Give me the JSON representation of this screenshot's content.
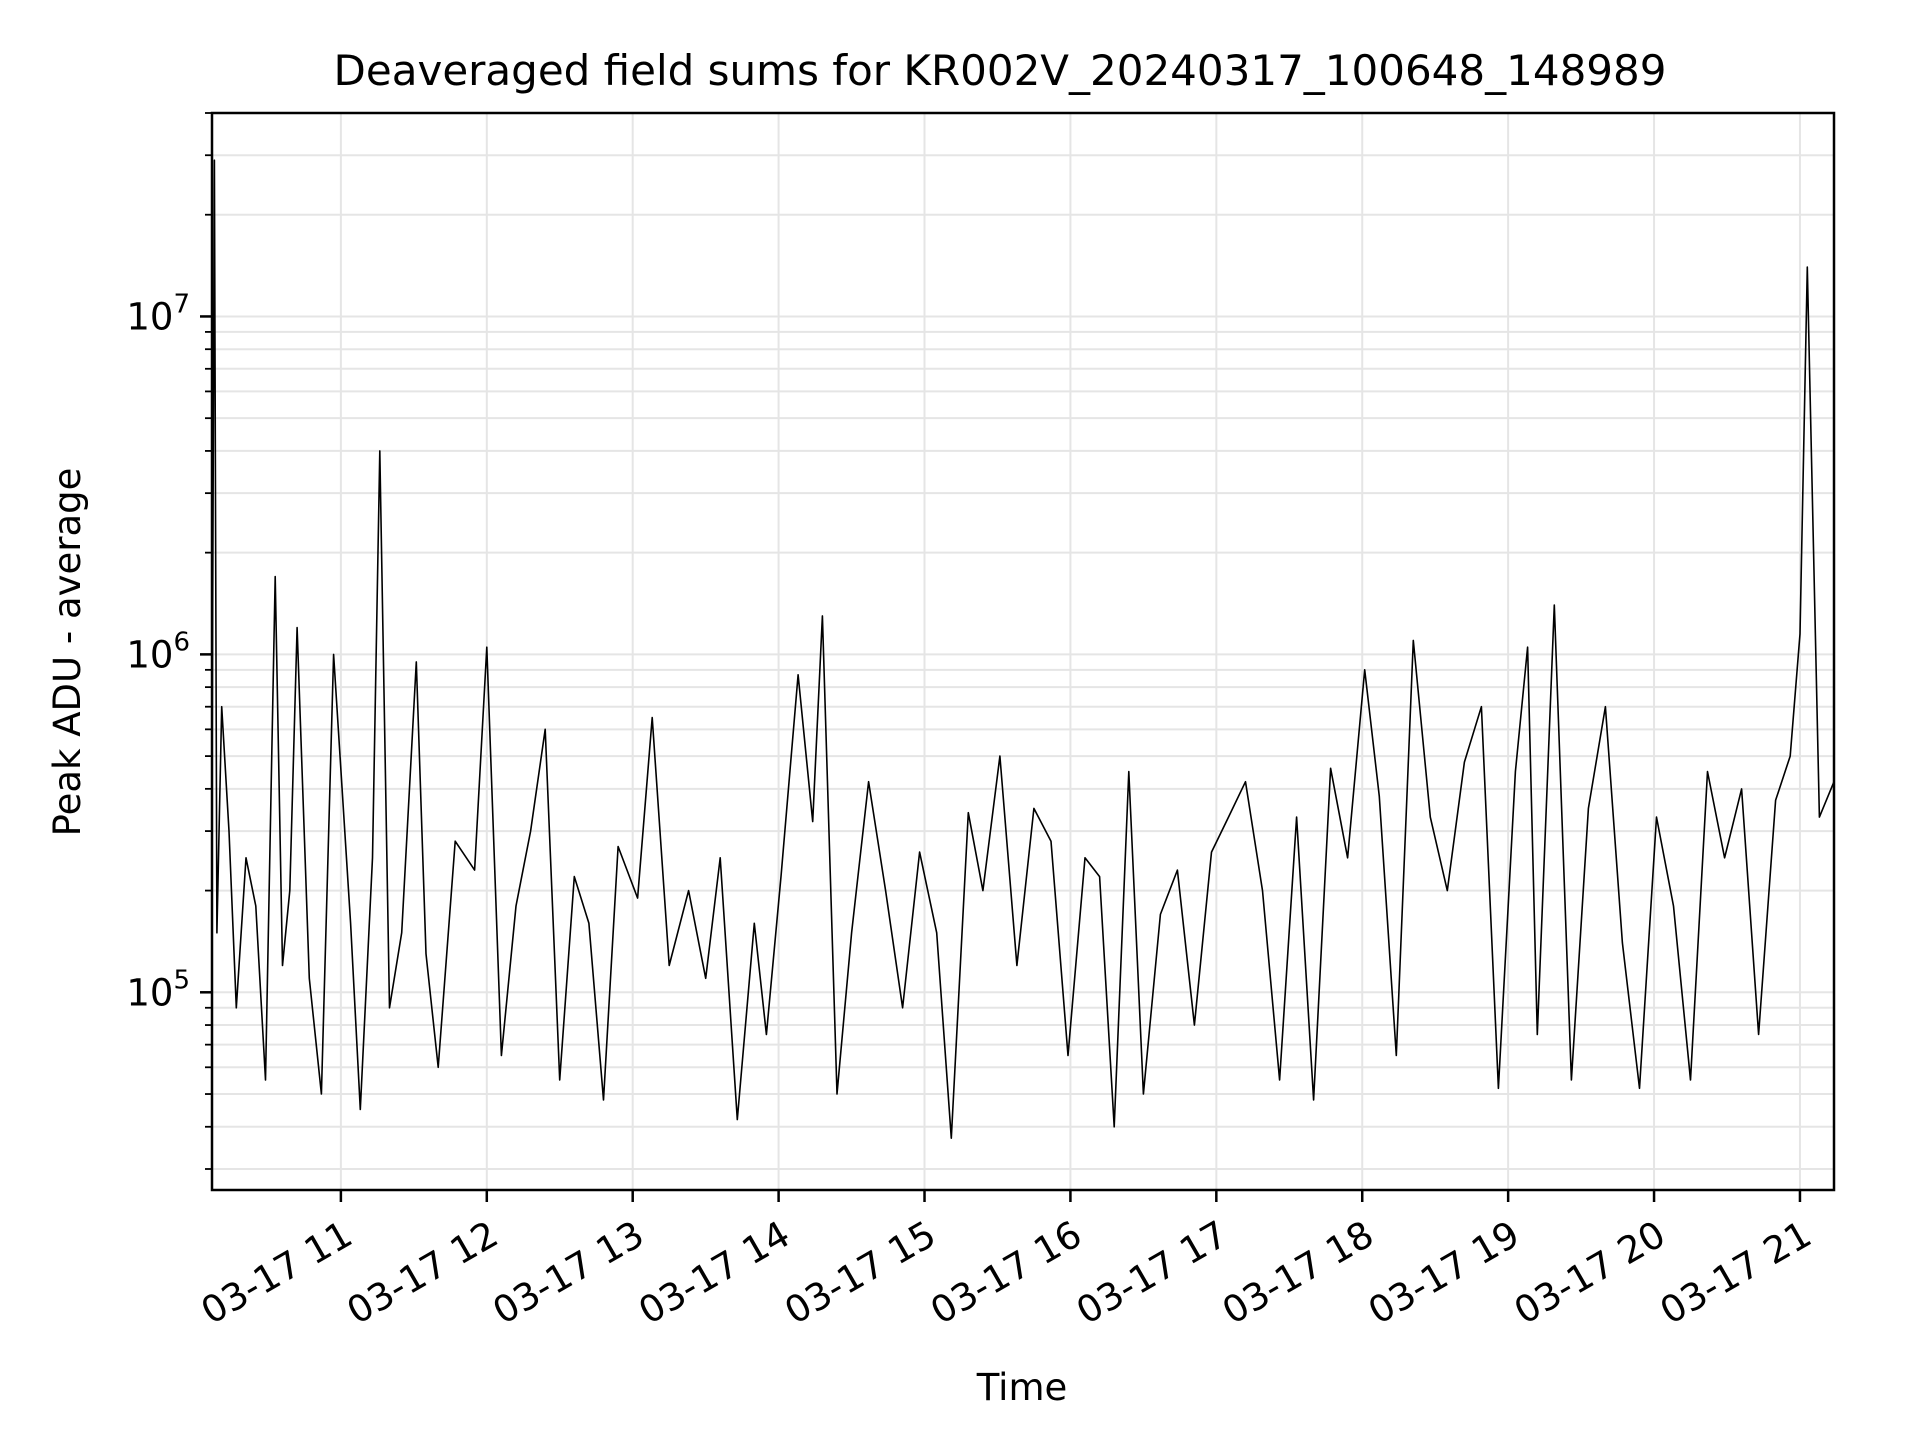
{
  "chart_data": {
    "type": "line",
    "title": "Deaveraged field sums for KR002V_20240317_100648_148989",
    "xlabel": "Time",
    "ylabel": "Peak ADU - average",
    "y_scale": "log",
    "ylim": [
      26000,
      40000000
    ],
    "xlim": [
      "2024-03-17 10:07",
      "2024-03-17 21:14"
    ],
    "grid": true,
    "grid_color": "#e5e5e5",
    "line_color": "#000000",
    "x_ticks": [
      {
        "time": "2024-03-17 11:00",
        "label": "03-17 11"
      },
      {
        "time": "2024-03-17 12:00",
        "label": "03-17 12"
      },
      {
        "time": "2024-03-17 13:00",
        "label": "03-17 13"
      },
      {
        "time": "2024-03-17 14:00",
        "label": "03-17 14"
      },
      {
        "time": "2024-03-17 15:00",
        "label": "03-17 15"
      },
      {
        "time": "2024-03-17 16:00",
        "label": "03-17 16"
      },
      {
        "time": "2024-03-17 17:00",
        "label": "03-17 17"
      },
      {
        "time": "2024-03-17 18:00",
        "label": "03-17 18"
      },
      {
        "time": "2024-03-17 19:00",
        "label": "03-17 19"
      },
      {
        "time": "2024-03-17 20:00",
        "label": "03-17 20"
      },
      {
        "time": "2024-03-17 21:00",
        "label": "03-17 21"
      }
    ],
    "y_ticks": [
      {
        "value": 100000,
        "base": "10",
        "exp": "5"
      },
      {
        "value": 1000000,
        "base": "10",
        "exp": "6"
      },
      {
        "value": 10000000,
        "base": "10",
        "exp": "7"
      }
    ],
    "series": [
      {
        "x": [
          "2024-03-17 10:07",
          "2024-03-17 10:08",
          "2024-03-17 10:09",
          "2024-03-17 10:11",
          "2024-03-17 10:14",
          "2024-03-17 10:17",
          "2024-03-17 10:21",
          "2024-03-17 10:25",
          "2024-03-17 10:29",
          "2024-03-17 10:33",
          "2024-03-17 10:36",
          "2024-03-17 10:39",
          "2024-03-17 10:42",
          "2024-03-17 10:47",
          "2024-03-17 10:52",
          "2024-03-17 10:57",
          "2024-03-17 11:04",
          "2024-03-17 11:08",
          "2024-03-17 11:13",
          "2024-03-17 11:16",
          "2024-03-17 11:20",
          "2024-03-17 11:25",
          "2024-03-17 11:31",
          "2024-03-17 11:35",
          "2024-03-17 11:40",
          "2024-03-17 11:47",
          "2024-03-17 11:55",
          "2024-03-17 12:00",
          "2024-03-17 12:06",
          "2024-03-17 12:12",
          "2024-03-17 12:18",
          "2024-03-17 12:24",
          "2024-03-17 12:30",
          "2024-03-17 12:36",
          "2024-03-17 12:42",
          "2024-03-17 12:48",
          "2024-03-17 12:54",
          "2024-03-17 13:02",
          "2024-03-17 13:08",
          "2024-03-17 13:15",
          "2024-03-17 13:23",
          "2024-03-17 13:30",
          "2024-03-17 13:36",
          "2024-03-17 13:43",
          "2024-03-17 13:50",
          "2024-03-17 13:55",
          "2024-03-17 14:01",
          "2024-03-17 14:08",
          "2024-03-17 14:14",
          "2024-03-17 14:18",
          "2024-03-17 14:24",
          "2024-03-17 14:30",
          "2024-03-17 14:37",
          "2024-03-17 14:44",
          "2024-03-17 14:51",
          "2024-03-17 14:58",
          "2024-03-17 15:05",
          "2024-03-17 15:11",
          "2024-03-17 15:18",
          "2024-03-17 15:24",
          "2024-03-17 15:31",
          "2024-03-17 15:38",
          "2024-03-17 15:45",
          "2024-03-17 15:52",
          "2024-03-17 15:59",
          "2024-03-17 16:06",
          "2024-03-17 16:12",
          "2024-03-17 16:18",
          "2024-03-17 16:24",
          "2024-03-17 16:30",
          "2024-03-17 16:37",
          "2024-03-17 16:44",
          "2024-03-17 16:51",
          "2024-03-17 16:58",
          "2024-03-17 17:05",
          "2024-03-17 17:12",
          "2024-03-17 17:19",
          "2024-03-17 17:26",
          "2024-03-17 17:33",
          "2024-03-17 17:40",
          "2024-03-17 17:47",
          "2024-03-17 17:54",
          "2024-03-17 18:01",
          "2024-03-17 18:07",
          "2024-03-17 18:14",
          "2024-03-17 18:21",
          "2024-03-17 18:28",
          "2024-03-17 18:35",
          "2024-03-17 18:42",
          "2024-03-17 18:49",
          "2024-03-17 18:56",
          "2024-03-17 19:03",
          "2024-03-17 19:08",
          "2024-03-17 19:12",
          "2024-03-17 19:19",
          "2024-03-17 19:26",
          "2024-03-17 19:33",
          "2024-03-17 19:40",
          "2024-03-17 19:47",
          "2024-03-17 19:54",
          "2024-03-17 20:01",
          "2024-03-17 20:08",
          "2024-03-17 20:15",
          "2024-03-17 20:22",
          "2024-03-17 20:29",
          "2024-03-17 20:36",
          "2024-03-17 20:43",
          "2024-03-17 20:50",
          "2024-03-17 20:56",
          "2024-03-17 21:00",
          "2024-03-17 21:03",
          "2024-03-17 21:08",
          "2024-03-17 21:14"
        ],
        "y": [
          400000,
          29000000,
          150000,
          700000,
          300000,
          90000,
          250000,
          180000,
          55000,
          1700000,
          120000,
          200000,
          1200000,
          110000,
          50000,
          1000000,
          160000,
          45000,
          250000,
          4000000,
          90000,
          150000,
          950000,
          130000,
          60000,
          280000,
          230000,
          1050000,
          65000,
          180000,
          300000,
          600000,
          55000,
          220000,
          160000,
          48000,
          270000,
          190000,
          650000,
          120000,
          200000,
          110000,
          250000,
          42000,
          160000,
          75000,
          220000,
          870000,
          320000,
          1300000,
          50000,
          150000,
          420000,
          200000,
          90000,
          260000,
          150000,
          37000,
          340000,
          200000,
          500000,
          120000,
          350000,
          280000,
          65000,
          250000,
          220000,
          40000,
          450000,
          50000,
          170000,
          230000,
          80000,
          260000,
          330000,
          420000,
          200000,
          55000,
          330000,
          48000,
          460000,
          250000,
          900000,
          380000,
          65000,
          1100000,
          330000,
          200000,
          480000,
          700000,
          52000,
          450000,
          1050000,
          75000,
          1400000,
          55000,
          350000,
          700000,
          140000,
          52000,
          330000,
          180000,
          55000,
          450000,
          250000,
          400000,
          75000,
          370000,
          500000,
          1150000,
          14000000,
          330000,
          420000
        ]
      }
    ]
  }
}
